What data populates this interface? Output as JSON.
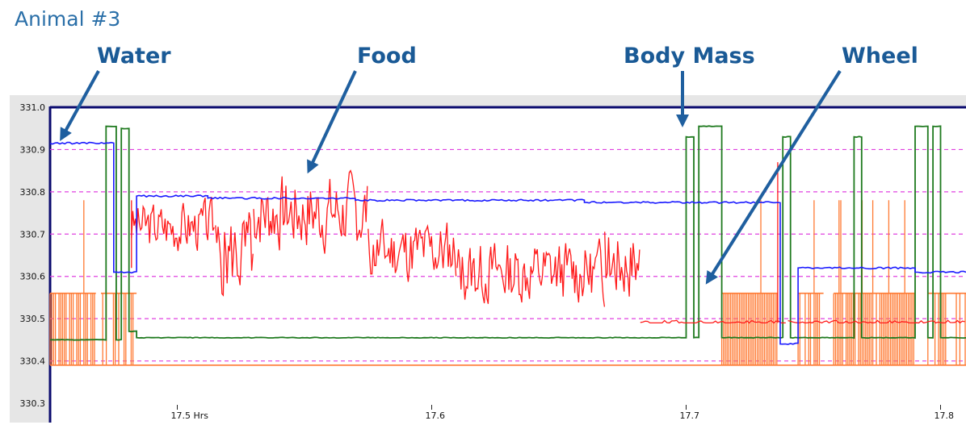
{
  "page_title": "Animal #3",
  "colors": {
    "water": "#1a1aff",
    "food": "#ff1a1a",
    "body_mass": "#1f7a1f",
    "wheel": "#ff7a33",
    "grid": "#e040e0",
    "arrow": "#1f5f9f",
    "label": "#1a5a96",
    "title": "#2a6fa8"
  },
  "callouts": [
    {
      "label": "Water",
      "points_to": "water"
    },
    {
      "label": "Food",
      "points_to": "food"
    },
    {
      "label": "Body Mass",
      "points_to": "body_mass"
    },
    {
      "label": "Wheel",
      "points_to": "wheel"
    }
  ],
  "chart_data": {
    "type": "line",
    "title": "",
    "xlabel": "",
    "ylabel": "",
    "xlim": [
      17.45,
      17.81
    ],
    "ylim": [
      330.3,
      331.0
    ],
    "y_ticks": [
      "331.0",
      "330.9",
      "330.8",
      "330.7",
      "330.6",
      "330.5",
      "330.4",
      "330.3"
    ],
    "x_ticks": [
      {
        "value": 17.5,
        "label": "17.5 Hrs"
      },
      {
        "value": 17.6,
        "label": "17.6"
      },
      {
        "value": 17.7,
        "label": "17.7"
      },
      {
        "value": 17.8,
        "label": "17.8"
      }
    ],
    "grid": true,
    "grid_style": "dashed-horizontal",
    "series": [
      {
        "key": "water",
        "kind": "steps",
        "segments": [
          {
            "x0": 17.45,
            "x1": 17.475,
            "y": 330.915
          },
          {
            "x0": 17.475,
            "x1": 17.484,
            "y": 330.61
          },
          {
            "x0": 17.484,
            "x1": 17.512,
            "y": 330.79
          },
          {
            "x0": 17.512,
            "x1": 17.57,
            "y": 330.785
          },
          {
            "x0": 17.57,
            "x1": 17.66,
            "y": 330.78
          },
          {
            "x0": 17.66,
            "x1": 17.737,
            "y": 330.775
          },
          {
            "x0": 17.737,
            "x1": 17.744,
            "y": 330.44
          },
          {
            "x0": 17.744,
            "x1": 17.79,
            "y": 330.62
          },
          {
            "x0": 17.79,
            "x1": 17.81,
            "y": 330.61
          }
        ]
      },
      {
        "key": "food",
        "kind": "noise",
        "segments": [
          {
            "x0": 17.482,
            "x1": 17.515,
            "base": 330.72,
            "amp": 0.08,
            "seed": 3
          },
          {
            "x0": 17.515,
            "x1": 17.53,
            "base": 330.65,
            "amp": 0.14,
            "seed": 5
          },
          {
            "x0": 17.53,
            "x1": 17.575,
            "base": 330.75,
            "amp": 0.12,
            "seed": 7
          },
          {
            "x0": 17.575,
            "x1": 17.61,
            "base": 330.66,
            "amp": 0.1,
            "seed": 11
          },
          {
            "x0": 17.61,
            "x1": 17.668,
            "base": 330.61,
            "amp": 0.1,
            "seed": 13
          },
          {
            "x0": 17.668,
            "x1": 17.682,
            "base": 330.64,
            "amp": 0.12,
            "seed": 17
          },
          {
            "x0": 17.682,
            "x1": 17.74,
            "base": 330.49,
            "amp": 0.006,
            "seed": 19
          },
          {
            "x0": 17.74,
            "x1": 17.81,
            "base": 330.49,
            "amp": 0.006,
            "seed": 23
          }
        ]
      },
      {
        "key": "body_mass",
        "kind": "steps",
        "segments": [
          {
            "x0": 17.45,
            "x1": 17.472,
            "y": 330.45
          },
          {
            "x0": 17.472,
            "x1": 17.476,
            "y": 330.955
          },
          {
            "x0": 17.476,
            "x1": 17.478,
            "y": 330.45
          },
          {
            "x0": 17.478,
            "x1": 17.481,
            "y": 330.95
          },
          {
            "x0": 17.481,
            "x1": 17.484,
            "y": 330.47
          },
          {
            "x0": 17.484,
            "x1": 17.62,
            "y": 330.455
          },
          {
            "x0": 17.62,
            "x1": 17.7,
            "y": 330.455
          },
          {
            "x0": 17.7,
            "x1": 17.703,
            "y": 330.93
          },
          {
            "x0": 17.703,
            "x1": 17.705,
            "y": 330.455
          },
          {
            "x0": 17.705,
            "x1": 17.714,
            "y": 330.955
          },
          {
            "x0": 17.714,
            "x1": 17.738,
            "y": 330.455
          },
          {
            "x0": 17.738,
            "x1": 17.741,
            "y": 330.93
          },
          {
            "x0": 17.741,
            "x1": 17.766,
            "y": 330.455
          },
          {
            "x0": 17.766,
            "x1": 17.769,
            "y": 330.93
          },
          {
            "x0": 17.769,
            "x1": 17.79,
            "y": 330.455
          },
          {
            "x0": 17.79,
            "x1": 17.795,
            "y": 330.955
          },
          {
            "x0": 17.795,
            "x1": 17.797,
            "y": 330.455
          },
          {
            "x0": 17.797,
            "x1": 17.8,
            "y": 330.955
          },
          {
            "x0": 17.8,
            "x1": 17.81,
            "y": 330.455
          }
        ]
      },
      {
        "key": "wheel",
        "kind": "bursts",
        "baseline": 330.39,
        "high": 330.56,
        "spike": 330.78,
        "bursts": [
          {
            "x0": 17.45,
            "x1": 17.468,
            "density": 0.8
          },
          {
            "x0": 17.47,
            "x1": 17.484,
            "density": 0.4
          },
          {
            "x0": 17.714,
            "x1": 17.736,
            "density": 1.0
          },
          {
            "x0": 17.744,
            "x1": 17.754,
            "density": 0.7
          },
          {
            "x0": 17.758,
            "x1": 17.79,
            "density": 0.9
          },
          {
            "x0": 17.795,
            "x1": 17.81,
            "density": 0.6
          }
        ]
      }
    ]
  }
}
